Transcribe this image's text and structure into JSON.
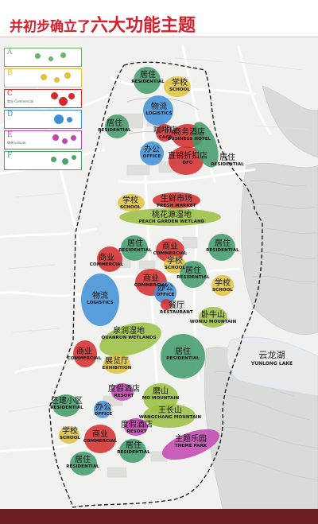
{
  "header": {
    "title_prefix": "并初步确立了",
    "title_highlight": "六大功能主题"
  },
  "legend": [
    {
      "letter": "A",
      "sub": "",
      "color": "#6bb36a"
    },
    {
      "letter": "B",
      "sub": "",
      "color": "#e3c13a"
    },
    {
      "letter": "C",
      "sub": "商业 Commercial",
      "color": "#d22b2b"
    },
    {
      "letter": "D",
      "sub": "",
      "color": "#3d8fd6"
    },
    {
      "letter": "E",
      "sub": "休闲 Leisure",
      "color": "#c245b0"
    },
    {
      "letter": "F",
      "sub": "",
      "color": "#4fa46a"
    }
  ],
  "lake": {
    "cn": "云龙湖",
    "en": "YUNLONG LAKE"
  },
  "zones": [
    {
      "id": "residential-north",
      "cn": "居住",
      "en": "RESIDENTIAL",
      "color": "#3f9a6a"
    },
    {
      "id": "school-north",
      "cn": "学校",
      "en": "SCHOOL",
      "color": "#e0c23a"
    },
    {
      "id": "logistics-north",
      "cn": "物流",
      "en": "LOGISTICS",
      "color": "#3d8fd6"
    },
    {
      "id": "residential-west",
      "cn": "居住",
      "en": "RESIDENTIAL",
      "color": "#3f9a6a"
    },
    {
      "id": "cafe",
      "cn": "咖啡店",
      "en": "CAFE",
      "color": "#d22b2b"
    },
    {
      "id": "business-hotel",
      "cn": "商务酒店",
      "en": "BUSINESS HOTEL",
      "color": "#d22b2b"
    },
    {
      "id": "office-north",
      "cn": "办公",
      "en": "OFFICE",
      "color": "#3d8fd6"
    },
    {
      "id": "dfo",
      "cn": "直销折扣店",
      "en": "DFO",
      "color": "#d22b2b"
    },
    {
      "id": "residential-east",
      "cn": "居住",
      "en": "RESIDENTIAL",
      "color": "#3f9a6a"
    },
    {
      "id": "school-mid",
      "cn": "学校",
      "en": "SCHOOL",
      "color": "#e0c23a"
    },
    {
      "id": "fresh-market",
      "cn": "生鲜市场",
      "en": "FRESH MARKET",
      "color": "#d22b2b"
    },
    {
      "id": "peach-wetland",
      "cn": "桃花源湿地",
      "en": "PEACH GARDEN WETLAND",
      "color": "#9bbf3f"
    },
    {
      "id": "residential-c1",
      "cn": "居住",
      "en": "RESIDENTIAL",
      "color": "#3f9a6a"
    },
    {
      "id": "residential-e2",
      "cn": "居住",
      "en": "RESIDENTIAL",
      "color": "#3f9a6a"
    },
    {
      "id": "commercial-1",
      "cn": "商业",
      "en": "COMMERCIAL",
      "color": "#d22b2b"
    },
    {
      "id": "commercial-2",
      "cn": "商业",
      "en": "COMMERCIAL",
      "color": "#d22b2b"
    },
    {
      "id": "school-c",
      "cn": "学校",
      "en": "SCHOOL",
      "color": "#e0c23a"
    },
    {
      "id": "commercial-3",
      "cn": "商业",
      "en": "COMMERCIAL",
      "color": "#d22b2b"
    },
    {
      "id": "residential-c2",
      "cn": "居住",
      "en": "RESIDENTIAL",
      "color": "#3f9a6a"
    },
    {
      "id": "school-e",
      "cn": "学校",
      "en": "SCHOOL",
      "color": "#e0c23a"
    },
    {
      "id": "logistics-south",
      "cn": "物流",
      "en": "LOGISTICS",
      "color": "#3d8fd6"
    },
    {
      "id": "office-mid",
      "cn": "办公",
      "en": "OFFICE",
      "color": "#3d8fd6"
    },
    {
      "id": "restaurant",
      "cn": "餐厅",
      "en": "RESTAURANT",
      "color": "#d22b2b"
    },
    {
      "id": "wonju-mountain",
      "cn": "卧牛山",
      "en": "WONIU MOUNTAIN",
      "color": "#9bbf3f"
    },
    {
      "id": "quanrun-wetlands",
      "cn": "泉润湿地",
      "en": "QUANRUN WETLANDS",
      "color": "#9bbf3f"
    },
    {
      "id": "commercial-4",
      "cn": "商业",
      "en": "COMMERCIAL",
      "color": "#d22b2b"
    },
    {
      "id": "exhibition",
      "cn": "展览厅",
      "en": "EXHIBITION",
      "color": "#e0c23a"
    },
    {
      "id": "residential-big",
      "cn": "居住",
      "en": "RESIDENTIAL",
      "color": "#3f9a6a"
    },
    {
      "id": "resort-1",
      "cn": "度假酒店",
      "en": "RESORT",
      "color": "#c245b0"
    },
    {
      "id": "residential-rebuilt",
      "cn": "还建小区",
      "en": "RESIDENTIAL",
      "color": "#3f9a6a"
    },
    {
      "id": "mo-mountain",
      "cn": "磨山",
      "en": "MO MOUNTAIN",
      "color": "#9bbf3f"
    },
    {
      "id": "office-south",
      "cn": "办公",
      "en": "OFFICE",
      "color": "#3d8fd6"
    },
    {
      "id": "wangchang-mountain",
      "cn": "王长山",
      "en": "WANGCHANG MOUNTAIN",
      "color": "#9bbf3f"
    },
    {
      "id": "school-south",
      "cn": "学校",
      "en": "SCHOOL",
      "color": "#e0c23a"
    },
    {
      "id": "commercial-5",
      "cn": "商业",
      "en": "COMMERCIAL",
      "color": "#d22b2b"
    },
    {
      "id": "resort-2",
      "cn": "度假酒店",
      "en": "RESORT",
      "color": "#c245b0"
    },
    {
      "id": "theme-park",
      "cn": "主题乐园",
      "en": "THEME PARK",
      "color": "#c245b0"
    },
    {
      "id": "residential-s1",
      "cn": "居住",
      "en": "RESIDENTIAL",
      "color": "#3f9a6a"
    },
    {
      "id": "residential-s2",
      "cn": "居住",
      "en": "RESIDENTIAL",
      "color": "#3f9a6a"
    }
  ]
}
